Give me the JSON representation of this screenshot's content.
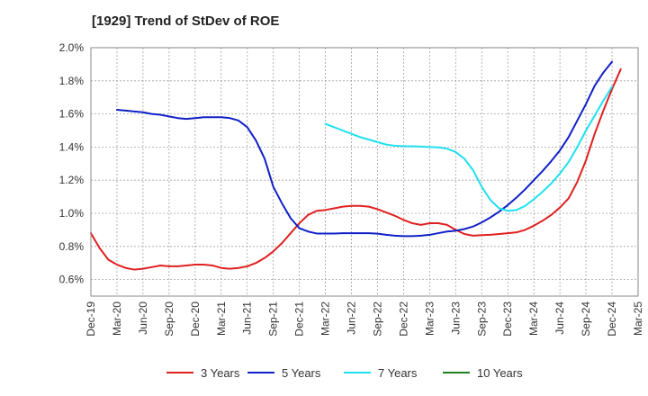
{
  "chart_data": {
    "type": "line",
    "title": "[1929]  Trend of StDev of ROE",
    "xlabel": "",
    "ylabel": "",
    "x_range": [
      "2019-12",
      "2025-03"
    ],
    "x_ticks": [
      "Dec-19",
      "Mar-20",
      "Jun-20",
      "Sep-20",
      "Dec-20",
      "Mar-21",
      "Jun-21",
      "Sep-21",
      "Dec-21",
      "Mar-22",
      "Jun-22",
      "Sep-22",
      "Dec-22",
      "Mar-23",
      "Jun-23",
      "Sep-23",
      "Dec-23",
      "Mar-24",
      "Jun-24",
      "Sep-24",
      "Dec-24",
      "Mar-25"
    ],
    "ylim": [
      0.5,
      2.0
    ],
    "y_ticks": [
      0.6,
      0.8,
      1.0,
      1.2,
      1.4,
      1.6,
      1.8,
      2.0
    ],
    "y_tick_labels": [
      "0.6%",
      "0.8%",
      "1.0%",
      "1.2%",
      "1.4%",
      "1.6%",
      "1.8%",
      "2.0%"
    ],
    "grid": true,
    "legend_position": "bottom",
    "series": [
      {
        "name": "3 Years",
        "color": "#e02020",
        "points": [
          [
            "2019-12",
            0.88
          ],
          [
            "2020-01",
            0.79
          ],
          [
            "2020-02",
            0.72
          ],
          [
            "2020-03",
            0.69
          ],
          [
            "2020-04",
            0.67
          ],
          [
            "2020-05",
            0.66
          ],
          [
            "2020-06",
            0.665
          ],
          [
            "2020-07",
            0.675
          ],
          [
            "2020-08",
            0.685
          ],
          [
            "2020-09",
            0.68
          ],
          [
            "2020-10",
            0.68
          ],
          [
            "2020-11",
            0.685
          ],
          [
            "2020-12",
            0.69
          ],
          [
            "2021-01",
            0.69
          ],
          [
            "2021-02",
            0.685
          ],
          [
            "2021-03",
            0.67
          ],
          [
            "2021-04",
            0.665
          ],
          [
            "2021-05",
            0.67
          ],
          [
            "2021-06",
            0.68
          ],
          [
            "2021-07",
            0.7
          ],
          [
            "2021-08",
            0.73
          ],
          [
            "2021-09",
            0.77
          ],
          [
            "2021-10",
            0.82
          ],
          [
            "2021-11",
            0.88
          ],
          [
            "2021-12",
            0.94
          ],
          [
            "2022-01",
            0.99
          ],
          [
            "2022-02",
            1.015
          ],
          [
            "2022-03",
            1.02
          ],
          [
            "2022-04",
            1.03
          ],
          [
            "2022-05",
            1.04
          ],
          [
            "2022-06",
            1.045
          ],
          [
            "2022-07",
            1.045
          ],
          [
            "2022-08",
            1.04
          ],
          [
            "2022-09",
            1.025
          ],
          [
            "2022-10",
            1.005
          ],
          [
            "2022-11",
            0.985
          ],
          [
            "2022-12",
            0.96
          ],
          [
            "2023-01",
            0.94
          ],
          [
            "2023-02",
            0.93
          ],
          [
            "2023-03",
            0.94
          ],
          [
            "2023-04",
            0.94
          ],
          [
            "2023-05",
            0.93
          ],
          [
            "2023-06",
            0.9
          ],
          [
            "2023-07",
            0.875
          ],
          [
            "2023-08",
            0.865
          ],
          [
            "2023-09",
            0.868
          ],
          [
            "2023-10",
            0.87
          ],
          [
            "2023-11",
            0.875
          ],
          [
            "2023-12",
            0.88
          ],
          [
            "2024-01",
            0.885
          ],
          [
            "2024-02",
            0.9
          ],
          [
            "2024-03",
            0.925
          ],
          [
            "2024-04",
            0.955
          ],
          [
            "2024-05",
            0.99
          ],
          [
            "2024-06",
            1.035
          ],
          [
            "2024-07",
            1.09
          ],
          [
            "2024-08",
            1.19
          ],
          [
            "2024-09",
            1.32
          ],
          [
            "2024-10",
            1.48
          ],
          [
            "2024-11",
            1.62
          ],
          [
            "2024-12",
            1.75
          ],
          [
            "2025-01",
            1.87
          ]
        ]
      },
      {
        "name": "5 Years",
        "color": "#1020c8",
        "points": [
          [
            "2020-03",
            1.625
          ],
          [
            "2020-04",
            1.62
          ],
          [
            "2020-05",
            1.615
          ],
          [
            "2020-06",
            1.61
          ],
          [
            "2020-07",
            1.6
          ],
          [
            "2020-08",
            1.595
          ],
          [
            "2020-09",
            1.585
          ],
          [
            "2020-10",
            1.575
          ],
          [
            "2020-11",
            1.57
          ],
          [
            "2020-12",
            1.575
          ],
          [
            "2021-01",
            1.58
          ],
          [
            "2021-02",
            1.58
          ],
          [
            "2021-03",
            1.58
          ],
          [
            "2021-04",
            1.575
          ],
          [
            "2021-05",
            1.56
          ],
          [
            "2021-06",
            1.52
          ],
          [
            "2021-07",
            1.44
          ],
          [
            "2021-08",
            1.33
          ],
          [
            "2021-09",
            1.16
          ],
          [
            "2021-10",
            1.06
          ],
          [
            "2021-11",
            0.97
          ],
          [
            "2021-12",
            0.91
          ],
          [
            "2022-01",
            0.89
          ],
          [
            "2022-02",
            0.878
          ],
          [
            "2022-03",
            0.878
          ],
          [
            "2022-04",
            0.878
          ],
          [
            "2022-05",
            0.88
          ],
          [
            "2022-06",
            0.88
          ],
          [
            "2022-07",
            0.88
          ],
          [
            "2022-08",
            0.88
          ],
          [
            "2022-09",
            0.877
          ],
          [
            "2022-10",
            0.87
          ],
          [
            "2022-11",
            0.865
          ],
          [
            "2022-12",
            0.862
          ],
          [
            "2023-01",
            0.862
          ],
          [
            "2023-02",
            0.865
          ],
          [
            "2023-03",
            0.87
          ],
          [
            "2023-04",
            0.88
          ],
          [
            "2023-05",
            0.89
          ],
          [
            "2023-06",
            0.895
          ],
          [
            "2023-07",
            0.905
          ],
          [
            "2023-08",
            0.92
          ],
          [
            "2023-09",
            0.945
          ],
          [
            "2023-10",
            0.975
          ],
          [
            "2023-11",
            1.01
          ],
          [
            "2023-12",
            1.05
          ],
          [
            "2024-01",
            1.095
          ],
          [
            "2024-02",
            1.145
          ],
          [
            "2024-03",
            1.2
          ],
          [
            "2024-04",
            1.255
          ],
          [
            "2024-05",
            1.315
          ],
          [
            "2024-06",
            1.38
          ],
          [
            "2024-07",
            1.46
          ],
          [
            "2024-08",
            1.56
          ],
          [
            "2024-09",
            1.66
          ],
          [
            "2024-10",
            1.77
          ],
          [
            "2024-11",
            1.85
          ],
          [
            "2024-12",
            1.915
          ]
        ]
      },
      {
        "name": "7 Years",
        "color": "#20e0f0",
        "points": [
          [
            "2022-03",
            1.54
          ],
          [
            "2022-04",
            1.52
          ],
          [
            "2022-05",
            1.5
          ],
          [
            "2022-06",
            1.48
          ],
          [
            "2022-07",
            1.46
          ],
          [
            "2022-08",
            1.445
          ],
          [
            "2022-09",
            1.43
          ],
          [
            "2022-10",
            1.415
          ],
          [
            "2022-11",
            1.408
          ],
          [
            "2022-12",
            1.405
          ],
          [
            "2023-01",
            1.405
          ],
          [
            "2023-02",
            1.403
          ],
          [
            "2023-03",
            1.4
          ],
          [
            "2023-04",
            1.398
          ],
          [
            "2023-05",
            1.39
          ],
          [
            "2023-06",
            1.37
          ],
          [
            "2023-07",
            1.33
          ],
          [
            "2023-08",
            1.26
          ],
          [
            "2023-09",
            1.16
          ],
          [
            "2023-10",
            1.08
          ],
          [
            "2023-11",
            1.03
          ],
          [
            "2023-12",
            1.015
          ],
          [
            "2024-01",
            1.02
          ],
          [
            "2024-02",
            1.045
          ],
          [
            "2024-03",
            1.085
          ],
          [
            "2024-04",
            1.13
          ],
          [
            "2024-05",
            1.18
          ],
          [
            "2024-06",
            1.24
          ],
          [
            "2024-07",
            1.31
          ],
          [
            "2024-08",
            1.4
          ],
          [
            "2024-09",
            1.5
          ],
          [
            "2024-10",
            1.59
          ],
          [
            "2024-11",
            1.68
          ],
          [
            "2024-12",
            1.765
          ]
        ]
      },
      {
        "name": "10 Years",
        "color": "#208020",
        "points": []
      }
    ]
  }
}
